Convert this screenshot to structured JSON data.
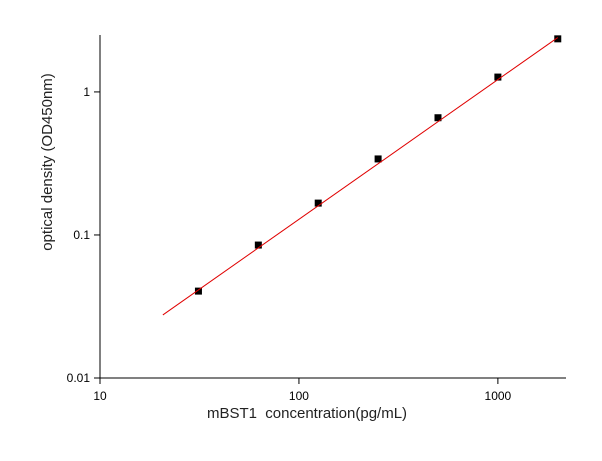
{
  "chart_data": {
    "type": "scatter",
    "x_label": "mBST1  concentration(pg/mL)",
    "y_label": "optical density (OD450nm)",
    "xscale": "log",
    "yscale": "log",
    "xlim": [
      10,
      2200
    ],
    "ylim": [
      0.01,
      2.5
    ],
    "xticks": [
      10,
      100,
      1000
    ],
    "yticks": [
      0.01,
      0.1,
      1
    ],
    "series": [
      {
        "color": "#000000",
        "x": [
          31.25,
          62.5,
          125,
          250,
          500,
          1000,
          2000
        ],
        "values": [
          0.0405,
          0.085,
          0.167,
          0.34,
          0.66,
          1.27,
          2.35
        ]
      },
      {
        "color": "#e00000",
        "line": true,
        "x": [
          20.7,
          2000
        ],
        "values": [
          0.0276,
          2.4
        ]
      }
    ]
  }
}
